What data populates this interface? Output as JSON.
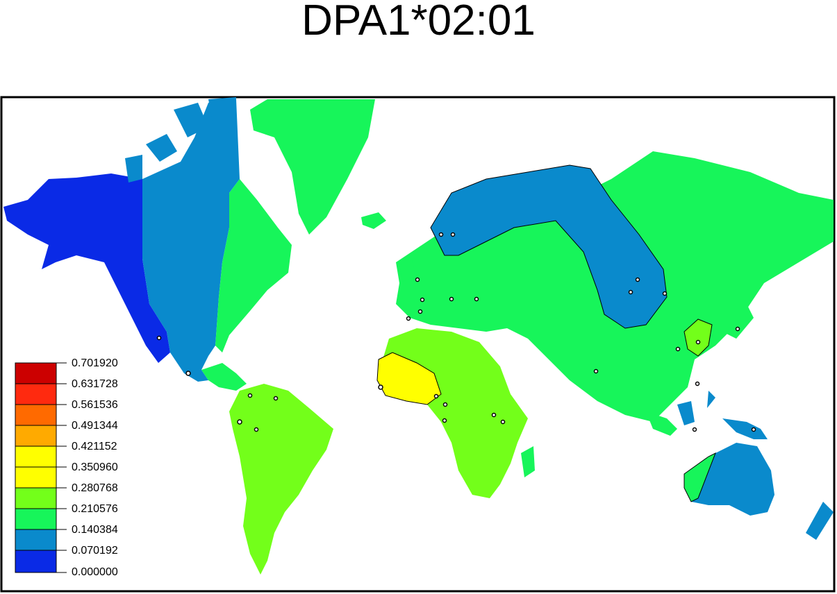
{
  "title": "DPA1*02:01",
  "colors": {
    "background": "#ffffff",
    "ocean": "#ffffff",
    "frame": "#000000",
    "contour_line": "#000000"
  },
  "legend": {
    "labels": [
      "0.701920",
      "0.631728",
      "0.561536",
      "0.491344",
      "0.421152",
      "0.350960",
      "0.280768",
      "0.210576",
      "0.140384",
      "0.070192",
      "0.000000"
    ],
    "colors": [
      "#cc0000",
      "#ff2a0f",
      "#ff6a00",
      "#ffaa00",
      "#ffff00",
      "#ffff00",
      "#73ff1a",
      "#17f55a",
      "#0a8acc",
      "#0a2ae6"
    ]
  },
  "regions": [
    {
      "name": "alaska-western-canada",
      "color": "#0a2ae6"
    },
    {
      "name": "canada-central-usa",
      "color": "#0a8acc"
    },
    {
      "name": "eastern-north-america",
      "color": "#17f55a"
    },
    {
      "name": "greenland",
      "color": "#17f55a"
    },
    {
      "name": "south-america",
      "color": "#73ff1a"
    },
    {
      "name": "africa",
      "color": "#73ff1a"
    },
    {
      "name": "west-africa-high",
      "color": "#ffff00"
    },
    {
      "name": "eurasia",
      "color": "#17f55a"
    },
    {
      "name": "siberia-scandinavia",
      "color": "#0a8acc"
    },
    {
      "name": "australia",
      "color": "#0a8acc"
    },
    {
      "name": "indonesia",
      "color": "#0a8acc"
    }
  ]
}
